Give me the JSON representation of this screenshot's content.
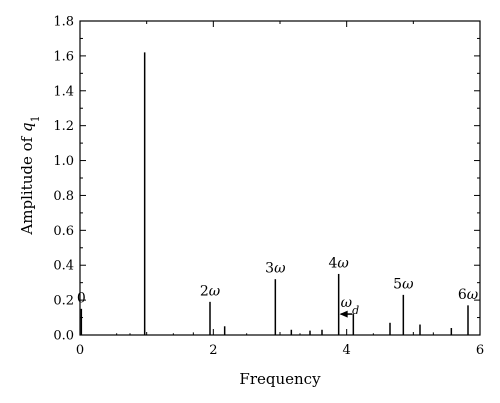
{
  "chart_data": {
    "type": "bar",
    "xlabel": "Frequency",
    "ylabel_main": "Amplitude of ",
    "ylabel_var": "q",
    "ylabel_sub": "1",
    "xlim": [
      0,
      6
    ],
    "ylim": [
      0,
      1.8
    ],
    "xticks": [
      {
        "value": 0,
        "label": "0"
      },
      {
        "value": 2,
        "label": "2"
      },
      {
        "value": 4,
        "label": "4"
      },
      {
        "value": 6,
        "label": "6"
      }
    ],
    "yticks": [
      {
        "value": 0.0,
        "label": "0.0"
      },
      {
        "value": 0.2,
        "label": "0.2"
      },
      {
        "value": 0.4,
        "label": "0.4"
      },
      {
        "value": 0.6,
        "label": "0.6"
      },
      {
        "value": 0.8,
        "label": "0.8"
      },
      {
        "value": 1.0,
        "label": "1.0"
      },
      {
        "value": 1.2,
        "label": "1.2"
      },
      {
        "value": 1.4,
        "label": "1.4"
      },
      {
        "value": 1.6,
        "label": "1.6"
      },
      {
        "value": 1.8,
        "label": "1.8"
      }
    ],
    "points": [
      {
        "x": 0.02,
        "y": 0.15
      },
      {
        "x": 0.97,
        "y": 1.62
      },
      {
        "x": 1.95,
        "y": 0.19
      },
      {
        "x": 2.17,
        "y": 0.05
      },
      {
        "x": 2.93,
        "y": 0.32
      },
      {
        "x": 3.17,
        "y": 0.03
      },
      {
        "x": 3.45,
        "y": 0.025
      },
      {
        "x": 3.63,
        "y": 0.03
      },
      {
        "x": 3.88,
        "y": 0.35
      },
      {
        "x": 4.1,
        "y": 0.12
      },
      {
        "x": 4.65,
        "y": 0.07
      },
      {
        "x": 4.85,
        "y": 0.23
      },
      {
        "x": 5.1,
        "y": 0.06
      },
      {
        "x": 5.57,
        "y": 0.04
      },
      {
        "x": 5.82,
        "y": 0.17
      }
    ],
    "noise_points": [
      {
        "x": 0.55,
        "y": 0.01
      },
      {
        "x": 0.75,
        "y": 0.01
      },
      {
        "x": 1.4,
        "y": 0.01
      },
      {
        "x": 1.7,
        "y": 0.015
      },
      {
        "x": 2.5,
        "y": 0.01
      },
      {
        "x": 3.3,
        "y": 0.01
      },
      {
        "x": 4.4,
        "y": 0.01
      },
      {
        "x": 5.3,
        "y": 0.015
      }
    ],
    "annotations": [
      {
        "id": "zero",
        "base": "0",
        "x": 0.02,
        "y": 0.17
      },
      {
        "id": "two",
        "base": "2",
        "var": "ω",
        "x": 1.95,
        "y": 0.21
      },
      {
        "id": "three",
        "base": "3",
        "var": "ω",
        "x": 2.93,
        "y": 0.34
      },
      {
        "id": "four",
        "base": "4",
        "var": "ω",
        "x": 3.88,
        "y": 0.37
      },
      {
        "id": "five",
        "base": "5",
        "var": "ω",
        "x": 4.85,
        "y": 0.25
      },
      {
        "id": "six",
        "base": "6",
        "var": "ω",
        "x": 5.82,
        "y": 0.19
      }
    ],
    "omega_d": {
      "var": "ω",
      "sub": "d",
      "x_from": 3.88,
      "x_to": 4.1,
      "y": 0.12
    }
  }
}
